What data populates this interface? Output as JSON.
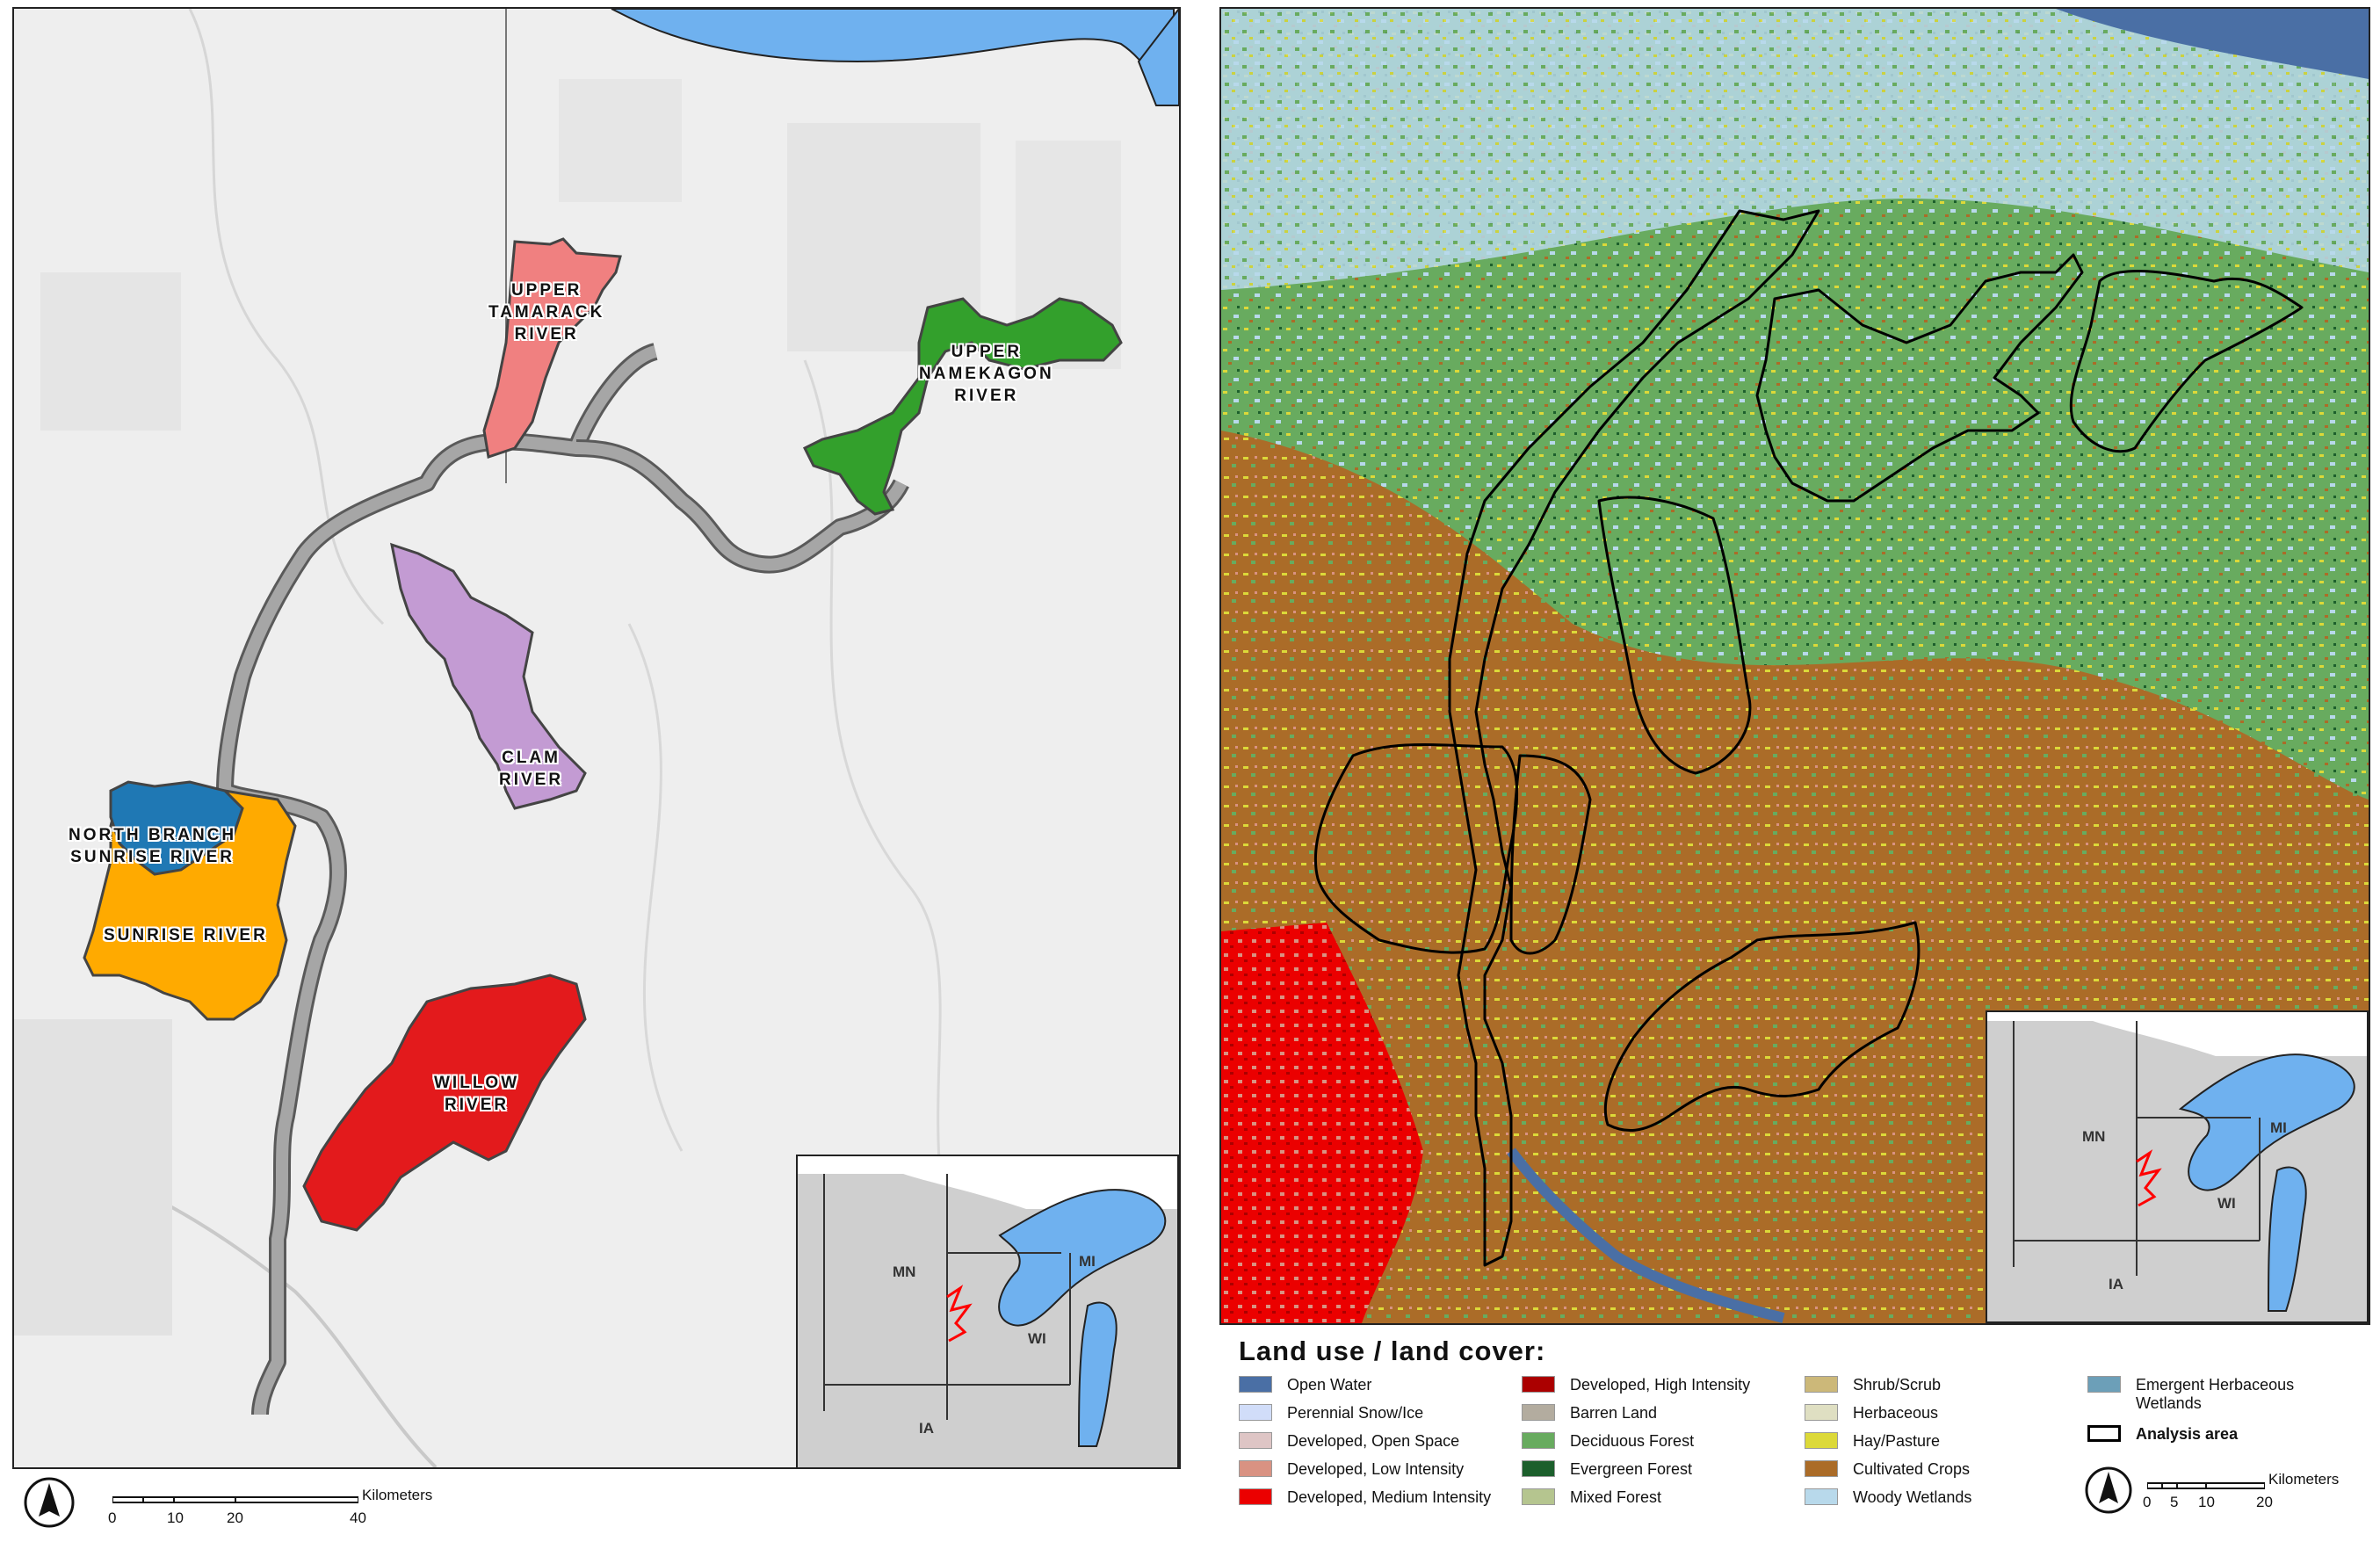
{
  "left_map": {
    "watersheds": [
      {
        "id": "upper-tamarack",
        "label": "UPPER\nTAMARACK\nRIVER",
        "color": "#f08080"
      },
      {
        "id": "upper-namekagon",
        "label": "UPPER\nNAMEKAGON\nRIVER",
        "color": "#33a02c"
      },
      {
        "id": "clam",
        "label": "CLAM\nRIVER",
        "color": "#c39bd3"
      },
      {
        "id": "north-branch-sunrise",
        "label": "NORTH BRANCH\nSUNRISE RIVER",
        "color": "#1f78b4"
      },
      {
        "id": "sunrise",
        "label": "SUNRISE RIVER",
        "color": "#ffaa00"
      },
      {
        "id": "willow",
        "label": "WILLOW\nRIVER",
        "color": "#e31a1c"
      }
    ],
    "river_corridor_color": "#a6a6a6",
    "inset": {
      "states": [
        "MN",
        "MI",
        "WI",
        "IA"
      ],
      "highlight_color": "#ff0000",
      "lake_color": "#6fb1ef"
    },
    "scale": {
      "unit": "Kilometers",
      "ticks": [
        "0",
        "10",
        "20",
        "40"
      ]
    }
  },
  "right_map": {
    "inset": {
      "states": [
        "MN",
        "MI",
        "WI",
        "IA"
      ]
    },
    "scale": {
      "unit": "Kilometers",
      "ticks": [
        "0",
        "5",
        "10",
        "20"
      ]
    }
  },
  "legend": {
    "title": "Land use / land cover:",
    "items": [
      {
        "label": "Open Water",
        "color": "#4a6fa5"
      },
      {
        "label": "Perennial Snow/Ice",
        "color": "#d1ddf9"
      },
      {
        "label": "Developed, Open Space",
        "color": "#dec5c5"
      },
      {
        "label": "Developed, Low Intensity",
        "color": "#d99282"
      },
      {
        "label": "Developed, Medium Intensity",
        "color": "#eb0000"
      },
      {
        "label": "Developed, High Intensity",
        "color": "#ab0000"
      },
      {
        "label": "Barren Land",
        "color": "#b3ac9f"
      },
      {
        "label": "Deciduous Forest",
        "color": "#68ab5f"
      },
      {
        "label": "Evergreen Forest",
        "color": "#1c5f2c"
      },
      {
        "label": "Mixed Forest",
        "color": "#b5c58f"
      },
      {
        "label": "Shrub/Scrub",
        "color": "#ccb879"
      },
      {
        "label": "Herbaceous",
        "color": "#dfdfc2"
      },
      {
        "label": "Hay/Pasture",
        "color": "#dcd939"
      },
      {
        "label": "Cultivated Crops",
        "color": "#ab6c28"
      },
      {
        "label": "Woody Wetlands",
        "color": "#b8d9eb"
      },
      {
        "label": "Emergent Herbaceous Wetlands",
        "color": "#6c9fb8"
      },
      {
        "label": "Analysis area",
        "color": "#ffffff"
      }
    ]
  }
}
